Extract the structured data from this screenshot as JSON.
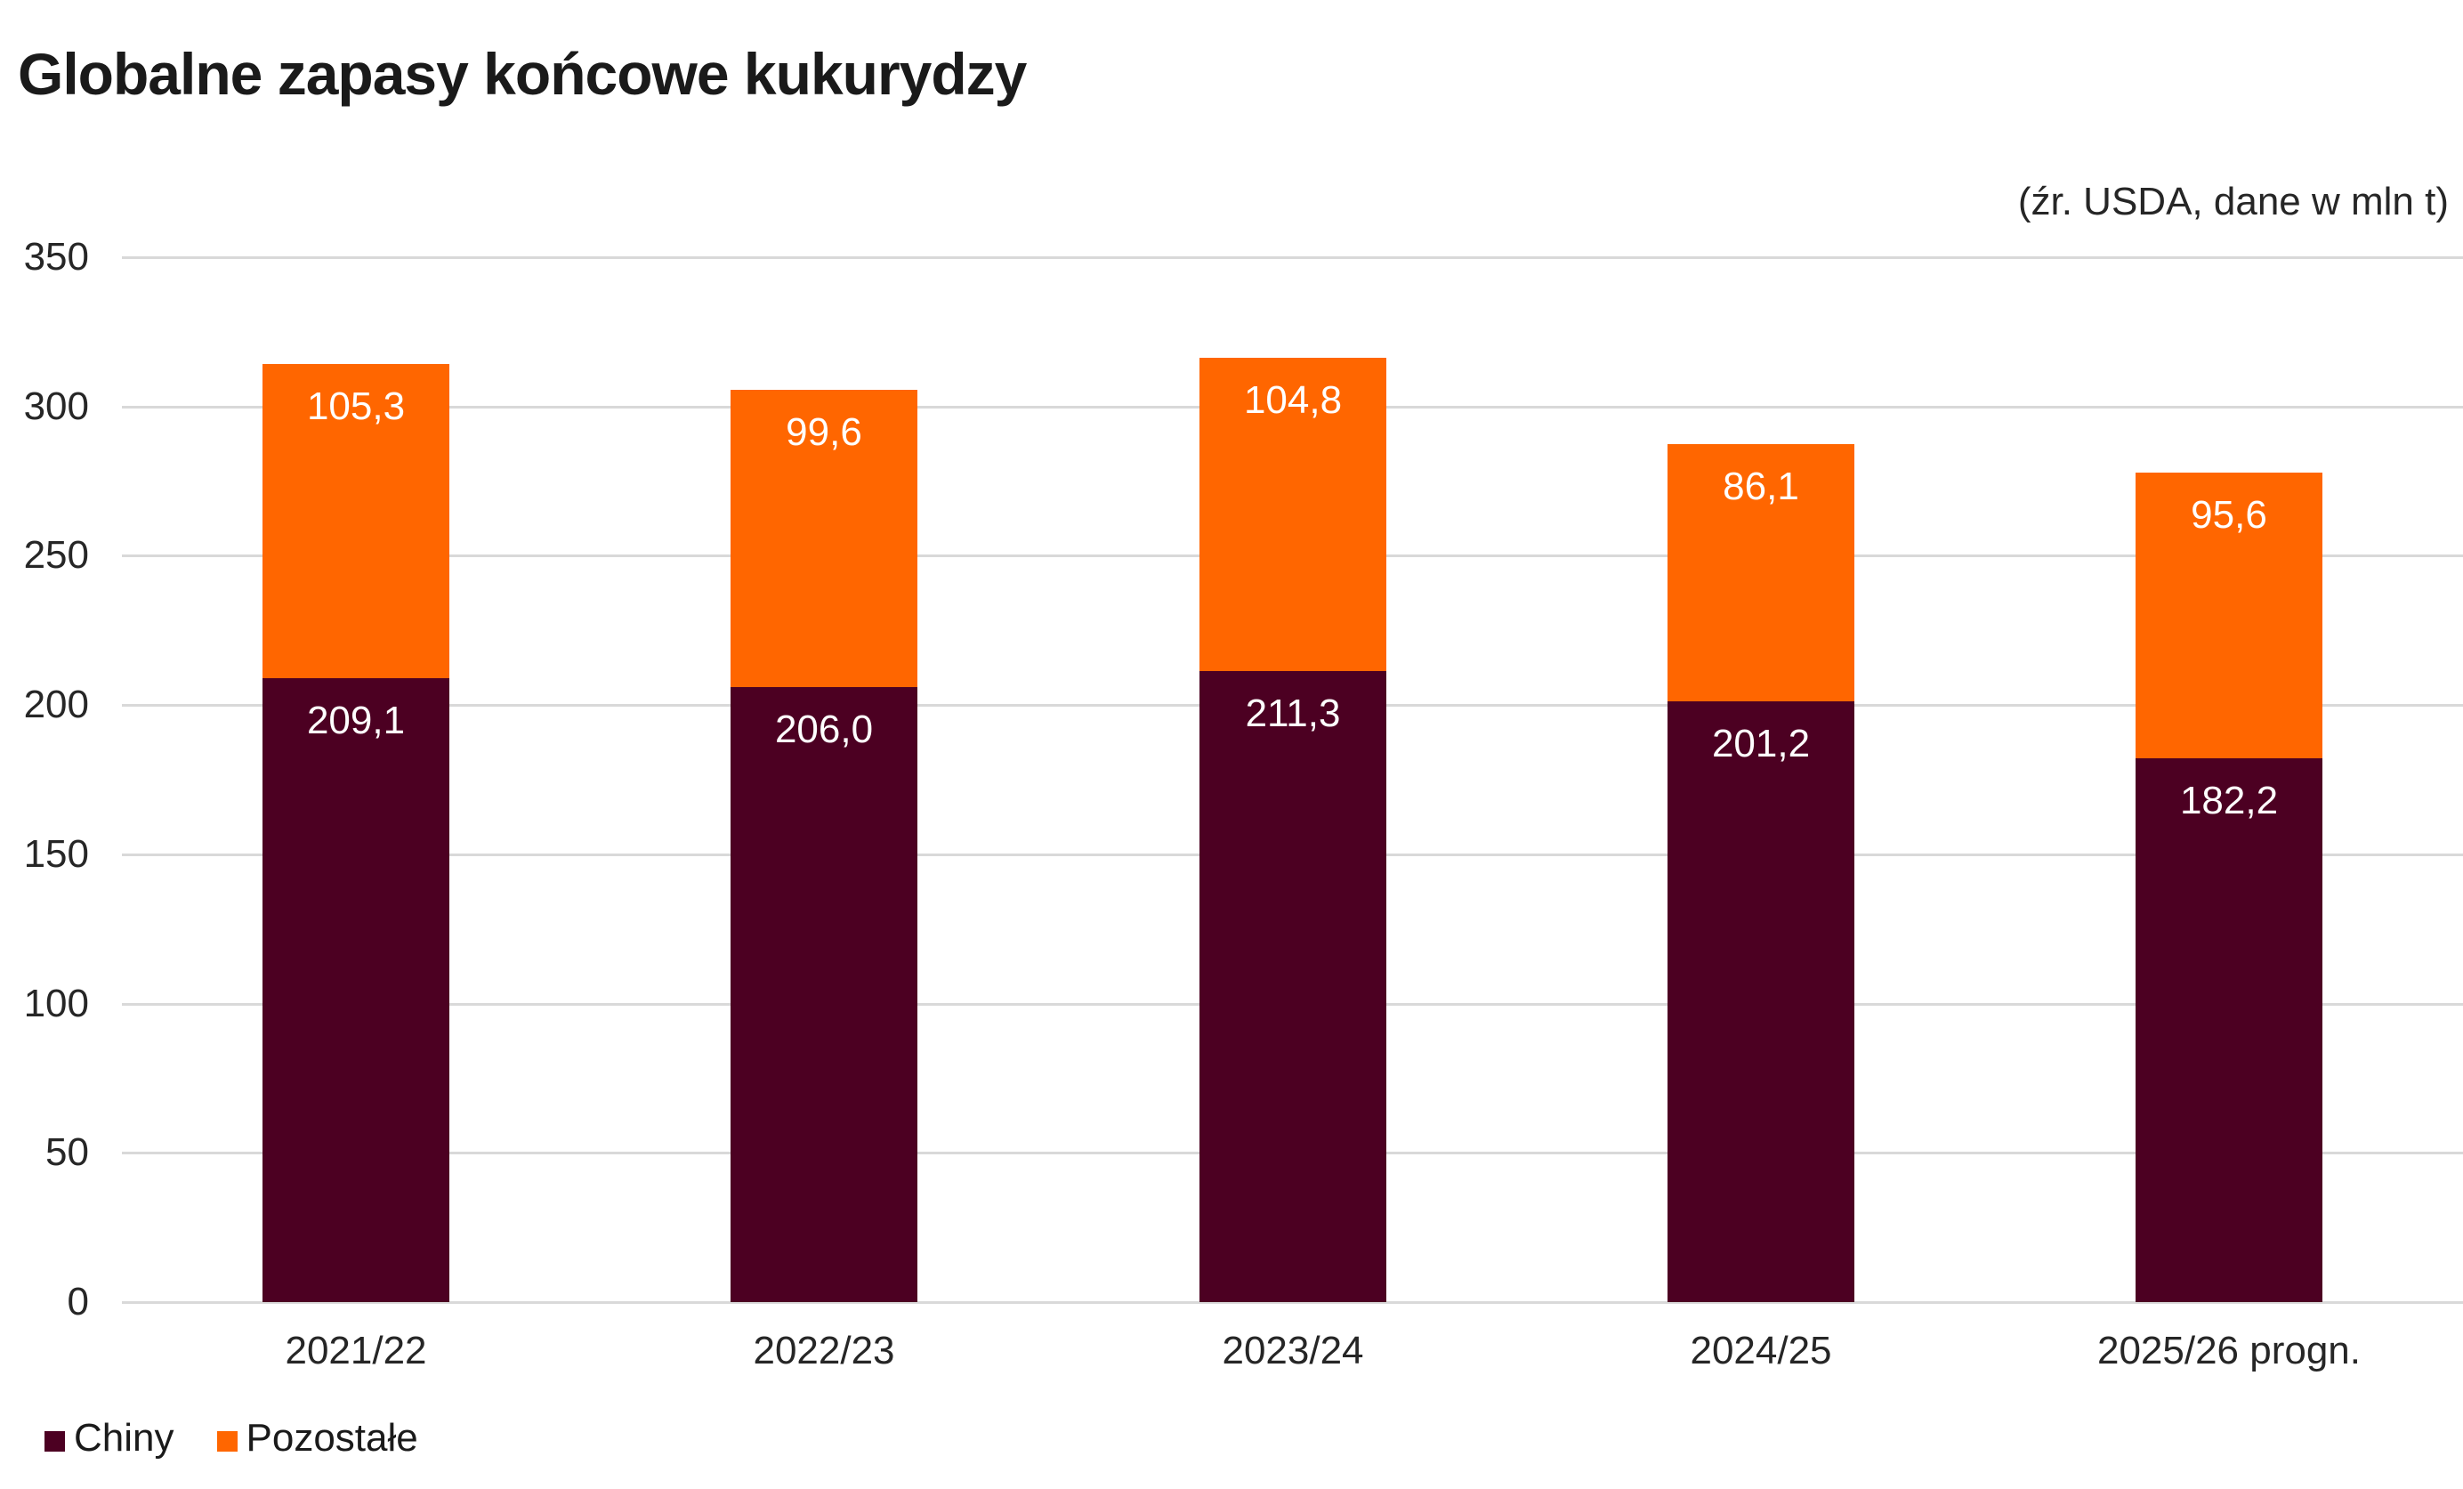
{
  "header": {
    "title": "Globalne zapasy końcowe kukurydzy",
    "subtitle": "(źr. USDA, dane w mln t)"
  },
  "chart_data": {
    "type": "bar",
    "stacked": true,
    "title": "Globalne zapasy końcowe kukurydzy",
    "subtitle_source_note": "(źr. USDA, dane w mln t)",
    "unit": "mln t",
    "categories": [
      "2021/22",
      "2022/23",
      "2023/24",
      "2024/25",
      "2025/26 progn."
    ],
    "series": [
      {
        "name": "Chiny",
        "color": "#4C0022",
        "values": [
          209.1,
          206.0,
          211.3,
          201.2,
          182.2
        ],
        "value_labels": [
          "209,1",
          "206,0",
          "211,3",
          "201,2",
          "182,2"
        ]
      },
      {
        "name": "Pozostałe",
        "color": "#FF6600",
        "values": [
          105.3,
          99.6,
          104.8,
          86.1,
          95.6
        ],
        "value_labels": [
          "105,3",
          "99,6",
          "104,8",
          "86,1",
          "95,6"
        ]
      }
    ],
    "totals": [
      314.4,
      305.6,
      316.1,
      287.3,
      277.8
    ],
    "y_axis": {
      "min": 0,
      "max": 350,
      "tick_step": 50,
      "ticks": [
        0,
        50,
        100,
        150,
        200,
        250,
        300,
        350
      ]
    },
    "grid": "horizontal",
    "gridline_color": "#d9d9d9",
    "data_label_color": "#ffffff",
    "legend_position": "bottom-left",
    "background_color": "#ffffff"
  }
}
